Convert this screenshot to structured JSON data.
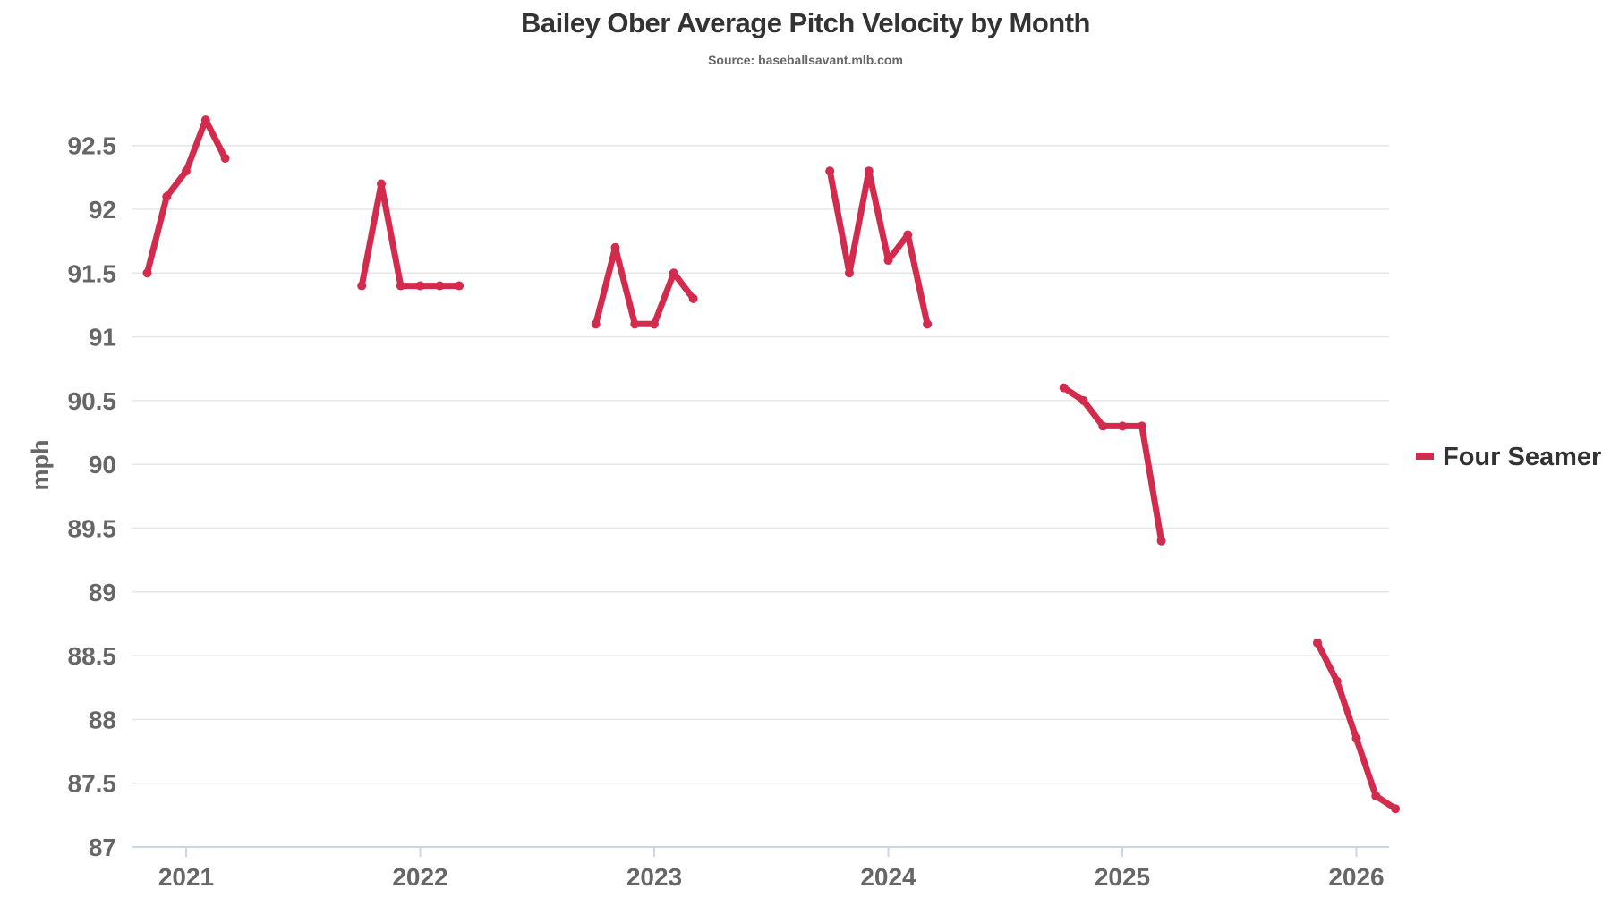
{
  "chart_data": {
    "type": "line",
    "title": "Bailey Ober Average Pitch Velocity by Month",
    "subtitle": "Source: baseballsavant.mlb.com",
    "ylabel": "mph",
    "xlabel": "",
    "ylim": [
      87,
      92.5
    ],
    "yticks": [
      "92.5",
      "92",
      "91.5",
      "91",
      "90.5",
      "90",
      "89.5",
      "89",
      "88.5",
      "88",
      "87.5",
      "87"
    ],
    "xticks": [
      "2021",
      "2022",
      "2023",
      "2024",
      "2025",
      "2026"
    ],
    "grid": "horizontal",
    "legend_position": "right",
    "series": [
      {
        "name": "Four Seamer",
        "color": "#d22b4e",
        "segments": [
          [
            {
              "x": "2020-11",
              "y": 91.5
            },
            {
              "x": "2020-12",
              "y": 92.1
            },
            {
              "x": "2021-01",
              "y": 92.3
            },
            {
              "x": "2021-02",
              "y": 92.7
            },
            {
              "x": "2021-03",
              "y": 92.4
            }
          ],
          [
            {
              "x": "2021-10",
              "y": 91.4
            },
            {
              "x": "2021-11",
              "y": 92.2
            },
            {
              "x": "2021-12",
              "y": 91.4
            },
            {
              "x": "2022-01",
              "y": 91.4
            },
            {
              "x": "2022-02",
              "y": 91.4
            },
            {
              "x": "2022-03",
              "y": 91.4
            }
          ],
          [
            {
              "x": "2022-10",
              "y": 91.1
            },
            {
              "x": "2022-11",
              "y": 91.7
            },
            {
              "x": "2022-12",
              "y": 91.1
            },
            {
              "x": "2023-01",
              "y": 91.1
            },
            {
              "x": "2023-02",
              "y": 91.5
            },
            {
              "x": "2023-03",
              "y": 91.3
            }
          ],
          [
            {
              "x": "2023-10",
              "y": 92.3
            },
            {
              "x": "2023-11",
              "y": 91.5
            },
            {
              "x": "2023-12",
              "y": 92.3
            },
            {
              "x": "2024-01",
              "y": 91.6
            },
            {
              "x": "2024-02",
              "y": 91.8
            },
            {
              "x": "2024-03",
              "y": 91.1
            }
          ],
          [
            {
              "x": "2024-10",
              "y": 90.6
            },
            {
              "x": "2024-11",
              "y": 90.5
            },
            {
              "x": "2024-12",
              "y": 90.3
            },
            {
              "x": "2025-01",
              "y": 90.3
            },
            {
              "x": "2025-02",
              "y": 90.3
            },
            {
              "x": "2025-03",
              "y": 89.4
            }
          ],
          [
            {
              "x": "2025-11",
              "y": 88.6
            },
            {
              "x": "2025-12",
              "y": 88.3
            },
            {
              "x": "2026-01",
              "y": 87.85
            },
            {
              "x": "2026-02",
              "y": 87.4
            },
            {
              "x": "2026-03",
              "y": 87.3
            }
          ]
        ]
      }
    ]
  }
}
